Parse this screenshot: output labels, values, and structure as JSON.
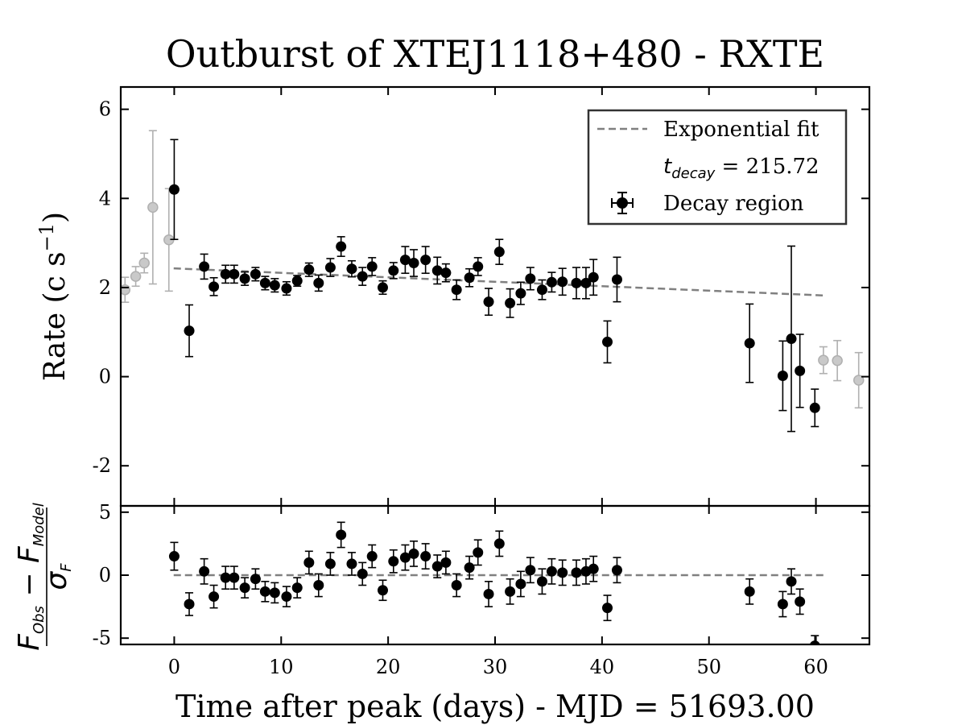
{
  "chart_data": {
    "type": "scatter",
    "title": "Outburst of XTEJ1118+480 - RXTE",
    "xlabel": "Time after peak (days) - MJD = 51693.00",
    "ylabel_main": "Rate (c s",
    "ylabel_main_exp": "−1",
    "ylabel_main_close": ")",
    "ylabel_resid": {
      "num_main": "F",
      "num_main_sub": "Obs",
      "minus": " − ",
      "num_second": "F",
      "num_second_sub": "Model",
      "den": "σ",
      "den_sub": "F"
    },
    "xlim": [
      -5,
      65
    ],
    "ylim_main": [
      -2.9,
      6.5
    ],
    "ylim_resid": [
      -5.5,
      5.5
    ],
    "xticks": [
      0,
      10,
      20,
      30,
      40,
      50,
      60
    ],
    "xtick_labels": [
      "0",
      "10",
      "20",
      "30",
      "40",
      "50",
      "60"
    ],
    "yticks_main": [
      -2,
      0,
      2,
      4,
      6
    ],
    "ytick_labels_main": [
      "-2",
      "0",
      "2",
      "4",
      "6"
    ],
    "yticks_resid": [
      -5,
      0,
      5
    ],
    "ytick_labels_resid": [
      "-5",
      "0",
      "5"
    ],
    "legend": {
      "placement": "upper right",
      "fit_label": "Exponential fit",
      "tdecay_symbol": "t",
      "tdecay_sub": "decay",
      "tdecay_value": " = 215.72",
      "decay_label": "Decay region"
    },
    "fit": {
      "x": [
        -0.05,
        61.0
      ],
      "y": [
        2.43,
        1.82
      ],
      "resid_y": 0.0,
      "color": "#808080"
    },
    "excluded_color": "#b0b0b0",
    "decay_color": "#000000",
    "excluded": [
      {
        "x": -4.6,
        "y": 1.95,
        "err": 0.28
      },
      {
        "x": -3.6,
        "y": 2.25,
        "err": 0.22
      },
      {
        "x": -2.8,
        "y": 2.55,
        "err": 0.22
      },
      {
        "x": -2.0,
        "y": 3.8,
        "err": 1.72
      },
      {
        "x": -0.5,
        "y": 3.07,
        "err": 1.15
      },
      {
        "x": 60.7,
        "y": 0.37,
        "err": 0.3
      },
      {
        "x": 62.0,
        "y": 0.36,
        "err": 0.45
      },
      {
        "x": 64.0,
        "y": -0.08,
        "err": 0.62
      }
    ],
    "decay": [
      {
        "x": 0.0,
        "y": 4.2,
        "err": 1.12,
        "r": 1.5,
        "rerr": 1.1
      },
      {
        "x": 1.4,
        "y": 1.03,
        "err": 0.58,
        "r": -2.3,
        "rerr": 0.9
      },
      {
        "x": 2.8,
        "y": 2.47,
        "err": 0.28,
        "r": 0.3,
        "rerr": 1.0
      },
      {
        "x": 3.7,
        "y": 2.02,
        "err": 0.2,
        "r": -1.7,
        "rerr": 0.9
      },
      {
        "x": 4.8,
        "y": 2.3,
        "err": 0.2,
        "r": -0.2,
        "rerr": 0.9
      },
      {
        "x": 5.6,
        "y": 2.3,
        "err": 0.2,
        "r": -0.2,
        "rerr": 0.9
      },
      {
        "x": 6.6,
        "y": 2.2,
        "err": 0.15,
        "r": -1.0,
        "rerr": 0.8
      },
      {
        "x": 7.6,
        "y": 2.3,
        "err": 0.15,
        "r": -0.3,
        "rerr": 0.8
      },
      {
        "x": 8.5,
        "y": 2.1,
        "err": 0.15,
        "r": -1.3,
        "rerr": 0.8
      },
      {
        "x": 9.4,
        "y": 2.05,
        "err": 0.15,
        "r": -1.4,
        "rerr": 0.8
      },
      {
        "x": 10.5,
        "y": 1.98,
        "err": 0.15,
        "r": -1.7,
        "rerr": 0.8
      },
      {
        "x": 11.5,
        "y": 2.15,
        "err": 0.12,
        "r": -1.0,
        "rerr": 0.8
      },
      {
        "x": 12.6,
        "y": 2.4,
        "err": 0.15,
        "r": 1.0,
        "rerr": 0.9
      },
      {
        "x": 13.5,
        "y": 2.1,
        "err": 0.18,
        "r": -0.8,
        "rerr": 0.9
      },
      {
        "x": 14.6,
        "y": 2.45,
        "err": 0.2,
        "r": 0.9,
        "rerr": 0.9
      },
      {
        "x": 15.6,
        "y": 2.92,
        "err": 0.22,
        "r": 3.2,
        "rerr": 1.0
      },
      {
        "x": 16.6,
        "y": 2.42,
        "err": 0.18,
        "r": 0.9,
        "rerr": 0.9
      },
      {
        "x": 17.6,
        "y": 2.25,
        "err": 0.2,
        "r": 0.1,
        "rerr": 0.9
      },
      {
        "x": 18.5,
        "y": 2.47,
        "err": 0.2,
        "r": 1.5,
        "rerr": 0.9
      },
      {
        "x": 19.5,
        "y": 2.0,
        "err": 0.15,
        "r": -1.2,
        "rerr": 0.8
      },
      {
        "x": 20.5,
        "y": 2.38,
        "err": 0.18,
        "r": 1.1,
        "rerr": 0.9
      },
      {
        "x": 21.6,
        "y": 2.62,
        "err": 0.3,
        "r": 1.4,
        "rerr": 1.0
      },
      {
        "x": 22.4,
        "y": 2.55,
        "err": 0.3,
        "r": 1.7,
        "rerr": 1.0
      },
      {
        "x": 23.5,
        "y": 2.62,
        "err": 0.3,
        "r": 1.5,
        "rerr": 1.0
      },
      {
        "x": 24.6,
        "y": 2.38,
        "err": 0.3,
        "r": 0.7,
        "rerr": 0.9
      },
      {
        "x": 25.4,
        "y": 2.33,
        "err": 0.2,
        "r": 1.0,
        "rerr": 0.9
      },
      {
        "x": 26.4,
        "y": 1.95,
        "err": 0.22,
        "r": -0.8,
        "rerr": 0.9
      },
      {
        "x": 27.6,
        "y": 2.22,
        "err": 0.2,
        "r": 0.6,
        "rerr": 0.9
      },
      {
        "x": 28.4,
        "y": 2.47,
        "err": 0.2,
        "r": 1.8,
        "rerr": 1.0
      },
      {
        "x": 29.4,
        "y": 1.68,
        "err": 0.3,
        "r": -1.5,
        "rerr": 1.0
      },
      {
        "x": 30.4,
        "y": 2.8,
        "err": 0.28,
        "r": 2.5,
        "rerr": 1.0
      },
      {
        "x": 31.4,
        "y": 1.65,
        "err": 0.32,
        "r": -1.3,
        "rerr": 1.0
      },
      {
        "x": 32.4,
        "y": 1.87,
        "err": 0.25,
        "r": -0.7,
        "rerr": 1.0
      },
      {
        "x": 33.3,
        "y": 2.2,
        "err": 0.25,
        "r": 0.4,
        "rerr": 1.0
      },
      {
        "x": 34.4,
        "y": 1.95,
        "err": 0.22,
        "r": -0.5,
        "rerr": 1.0
      },
      {
        "x": 35.3,
        "y": 2.12,
        "err": 0.22,
        "r": 0.3,
        "rerr": 1.0
      },
      {
        "x": 36.3,
        "y": 2.13,
        "err": 0.3,
        "r": 0.2,
        "rerr": 1.0
      },
      {
        "x": 37.6,
        "y": 2.1,
        "err": 0.35,
        "r": 0.2,
        "rerr": 1.0
      },
      {
        "x": 38.5,
        "y": 2.1,
        "err": 0.35,
        "r": 0.3,
        "rerr": 1.0
      },
      {
        "x": 39.2,
        "y": 2.23,
        "err": 0.4,
        "r": 0.5,
        "rerr": 1.0
      },
      {
        "x": 40.5,
        "y": 0.78,
        "err": 0.47,
        "r": -2.6,
        "rerr": 1.0
      },
      {
        "x": 41.4,
        "y": 2.18,
        "err": 0.5,
        "r": 0.4,
        "rerr": 1.0
      },
      {
        "x": 53.8,
        "y": 0.75,
        "err": 0.88,
        "r": -1.3,
        "rerr": 1.0
      },
      {
        "x": 56.9,
        "y": 0.02,
        "err": 0.78,
        "r": -2.3,
        "rerr": 1.0
      },
      {
        "x": 57.7,
        "y": 0.85,
        "err": 2.08,
        "r": -0.5,
        "rerr": 1.0
      },
      {
        "x": 58.5,
        "y": 0.13,
        "err": 0.82,
        "r": -2.1,
        "rerr": 1.0
      },
      {
        "x": 59.9,
        "y": -0.7,
        "err": 0.42,
        "r": -5.6,
        "rerr": 0.8
      }
    ]
  }
}
